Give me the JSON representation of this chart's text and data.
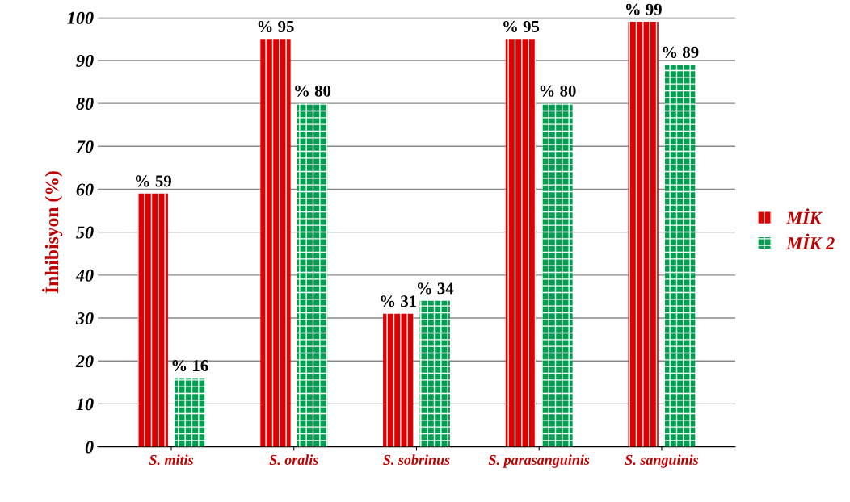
{
  "chart_data": {
    "type": "bar",
    "ylabel": "İnhibisyon (%)",
    "categories": [
      "S. mitis",
      "S. oralis",
      "S. sobrinus",
      "S. parasanguinis",
      "S. sanguinis"
    ],
    "series": [
      {
        "name": "MİK",
        "color": "#e00000",
        "values": [
          59,
          95,
          31,
          95,
          99
        ],
        "value_labels": [
          "% 59",
          "% 95",
          "% 31",
          "% 95",
          "% 99"
        ]
      },
      {
        "name": "MİK 2",
        "color": "#00a050",
        "values": [
          16,
          80,
          34,
          80,
          89
        ],
        "value_labels": [
          "% 16",
          "% 80",
          "% 34",
          "% 80",
          "% 89"
        ]
      }
    ],
    "ylim": [
      0,
      100
    ],
    "yticks": [
      0,
      10,
      20,
      30,
      40,
      50,
      60,
      70,
      80,
      90,
      100
    ],
    "grid": "y",
    "legend": "right"
  }
}
